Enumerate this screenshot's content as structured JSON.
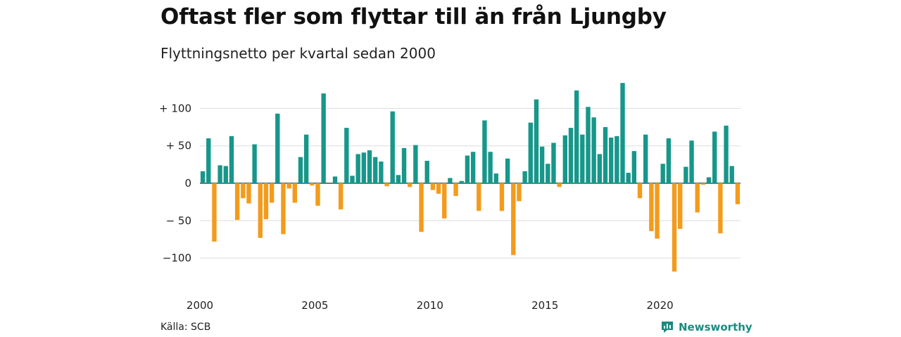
{
  "header": {
    "title": "Oftast fler som flyttar till än från Ljungby",
    "subtitle": "Flyttningsnetto per kvartal sedan 2000"
  },
  "footer": {
    "source": "Källa: SCB",
    "brand": "Newsworthy"
  },
  "colors": {
    "positive": "#16978a",
    "negative": "#f39b1c",
    "grid": "#dddddd",
    "brand": "#1a8b80"
  },
  "chart_data": {
    "type": "bar",
    "x_start": "2000 Q1",
    "x_ticks": [
      "2000",
      "2005",
      "2010",
      "2015",
      "2020"
    ],
    "y_ticks": [
      "+ 100",
      "+  50",
      "0",
      "− 50",
      "−100"
    ],
    "y_tick_values": [
      100,
      50,
      0,
      -50,
      -100
    ],
    "ylim": [
      -120,
      135
    ],
    "grid": true,
    "values": [
      16,
      60,
      -78,
      24,
      23,
      63,
      -49,
      -20,
      -27,
      52,
      -73,
      -48,
      -26,
      93,
      -68,
      -7,
      -26,
      35,
      65,
      -3,
      -30,
      120,
      0,
      9,
      -35,
      74,
      10,
      39,
      41,
      44,
      35,
      29,
      -4,
      96,
      11,
      47,
      -5,
      51,
      -65,
      30,
      -9,
      -14,
      -47,
      7,
      -17,
      3,
      37,
      42,
      -37,
      84,
      42,
      13,
      -37,
      33,
      -96,
      -24,
      16,
      81,
      112,
      49,
      26,
      54,
      -5,
      64,
      74,
      124,
      65,
      102,
      88,
      39,
      75,
      61,
      63,
      134,
      14,
      43,
      -20,
      65,
      -64,
      -74,
      26,
      60,
      -118,
      -61,
      22,
      57,
      -39,
      -2,
      8,
      69,
      -67,
      77,
      23,
      -28
    ]
  }
}
